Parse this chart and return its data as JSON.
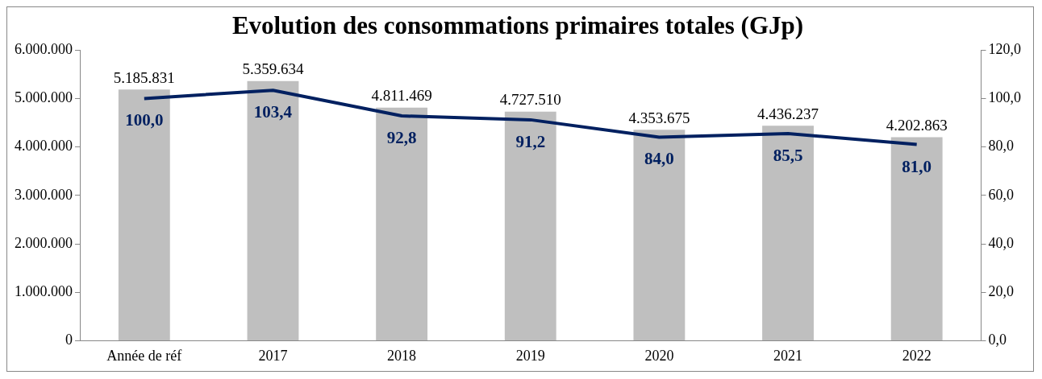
{
  "chart_data": {
    "type": "bar",
    "title": "Evolution des consommations primaires totales (GJp)",
    "categories": [
      "Année de réf",
      "2017",
      "2018",
      "2019",
      "2020",
      "2021",
      "2022"
    ],
    "series": [
      {
        "color": "#bfbfbf",
        "values": [
          5185831,
          5359634,
          4811469,
          4727510,
          4353675,
          4436237,
          4202863
        ],
        "value_labels": [
          "5.185.831",
          "5.359.634",
          "4.811.469",
          "4.727.510",
          "4.353.675",
          "4.436.237",
          "4.202.863"
        ]
      },
      {
        "type": "line",
        "axis": "y2",
        "color": "#002060",
        "values": [
          100.0,
          103.4,
          92.8,
          91.2,
          84.0,
          85.5,
          81.0
        ],
        "value_labels": [
          "100,0",
          "103,4",
          "92,8",
          "91,2",
          "84,0",
          "85,5",
          "81,0"
        ]
      }
    ],
    "ylim": [
      0,
      6000000
    ],
    "yticks": [
      {
        "value": 0,
        "label": "0"
      },
      {
        "value": 1000000,
        "label": "1.000.000"
      },
      {
        "value": 2000000,
        "label": "2.000.000"
      },
      {
        "value": 3000000,
        "label": "3.000.000"
      },
      {
        "value": 4000000,
        "label": "4.000.000"
      },
      {
        "value": 5000000,
        "label": "5.000.000"
      },
      {
        "value": 6000000,
        "label": "6.000.000"
      }
    ],
    "y2lim": [
      0,
      120
    ],
    "y2ticks": [
      {
        "value": 0,
        "label": "0,0"
      },
      {
        "value": 20,
        "label": "20,0"
      },
      {
        "value": 40,
        "label": "40,0"
      },
      {
        "value": 60,
        "label": "60,0"
      },
      {
        "value": 80,
        "label": "80,0"
      },
      {
        "value": 100,
        "label": "100,0"
      },
      {
        "value": 120,
        "label": "120,0"
      }
    ],
    "grid": false,
    "legend": false,
    "marker": "none",
    "line_style": "solid"
  }
}
